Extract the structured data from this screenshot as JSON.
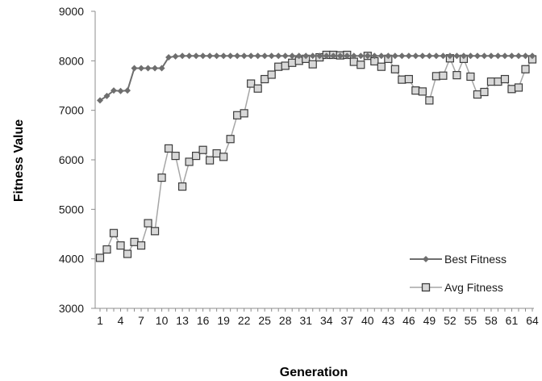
{
  "colors": {
    "best": "#6e6e6e",
    "avg": "#a6a6a6",
    "avg_marker_fill": "#d8d8d8",
    "avg_marker_stroke": "#3c3c3c",
    "axis": "#8c8c8c"
  },
  "chart_data": {
    "type": "line",
    "xlabel": "Generation",
    "ylabel": "Fitness Value",
    "ylim": [
      3000,
      9000
    ],
    "yticks": [
      3000,
      4000,
      5000,
      6000,
      7000,
      8000,
      9000
    ],
    "xlim": [
      1,
      64
    ],
    "xticks": [
      1,
      4,
      7,
      10,
      13,
      16,
      19,
      22,
      25,
      28,
      31,
      34,
      37,
      40,
      43,
      46,
      49,
      52,
      55,
      58,
      61,
      64
    ],
    "legend_position": "bottom-right",
    "grid": false,
    "series": [
      {
        "name": "Best Fitness",
        "marker": "diamond",
        "values": [
          7200,
          7290,
          7400,
          7390,
          7400,
          7850,
          7850,
          7850,
          7850,
          7850,
          8070,
          8090,
          8100,
          8100,
          8100,
          8100,
          8100,
          8100,
          8100,
          8100,
          8100,
          8100,
          8100,
          8100,
          8100,
          8100,
          8100,
          8100,
          8100,
          8100,
          8100,
          8100,
          8100,
          8100,
          8100,
          8100,
          8100,
          8100,
          8100,
          8100,
          8100,
          8100,
          8100,
          8100,
          8100,
          8100,
          8100,
          8100,
          8100,
          8100,
          8100,
          8100,
          8100,
          8100,
          8100,
          8100,
          8100,
          8100,
          8100,
          8100,
          8100,
          8100,
          8100,
          8100
        ]
      },
      {
        "name": "Avg Fitness",
        "marker": "square",
        "values": [
          4020,
          4190,
          4520,
          4270,
          4100,
          4340,
          4270,
          4720,
          4560,
          5640,
          6230,
          6080,
          5460,
          5960,
          6080,
          6200,
          5990,
          6130,
          6060,
          6420,
          6900,
          6940,
          7540,
          7440,
          7630,
          7720,
          7880,
          7900,
          7960,
          8000,
          8040,
          7930,
          8070,
          8120,
          8120,
          8110,
          8120,
          7980,
          7920,
          8100,
          7990,
          7880,
          8040,
          7830,
          7620,
          7630,
          7400,
          7380,
          7200,
          7690,
          7700,
          8050,
          7710,
          8040,
          7680,
          7320,
          7370,
          7580,
          7580,
          7630,
          7430,
          7460,
          7830,
          8030
        ]
      }
    ]
  }
}
